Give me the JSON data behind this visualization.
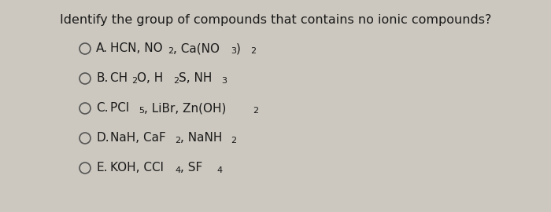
{
  "title": "Identify the group of compounds that contains no ionic compounds?",
  "background_color": "#ccc8bf",
  "title_fontsize": 11.5,
  "text_color": "#1a1a1a",
  "options": [
    {
      "label": "A.",
      "line1": "HCN, NO ",
      "sub1": "2",
      "line2": ", Ca(NO ",
      "sub2": "3",
      "line3": ") ",
      "sub3": "2",
      "line4": "",
      "sub4": ""
    },
    {
      "label": "B.",
      "line1": "CH ",
      "sub1": "2",
      "line2": "O, H ",
      "sub2": "2",
      "line3": "S, NH ",
      "sub3": "3",
      "line4": "",
      "sub4": ""
    },
    {
      "label": "C.",
      "line1": "PCl ",
      "sub1": "5",
      "line2": ", LiBr, Zn(OH) ",
      "sub2": "2",
      "line3": "",
      "sub3": "",
      "line4": "",
      "sub4": ""
    },
    {
      "label": "D.",
      "line1": "NaH, CaF ",
      "sub1": "2",
      "line2": ", NaNH ",
      "sub2": "2",
      "line3": "",
      "sub3": "",
      "line4": "",
      "sub4": ""
    },
    {
      "label": "E.",
      "line1": "KOH, CCl ",
      "sub1": "4",
      "line2": ", SF ",
      "sub2": "4",
      "line3": "",
      "sub3": "",
      "line4": "",
      "sub4": ""
    }
  ],
  "circle_color": "#555555",
  "main_fontsize": 11,
  "sub_fontsize": 8,
  "label_fontsize": 11
}
